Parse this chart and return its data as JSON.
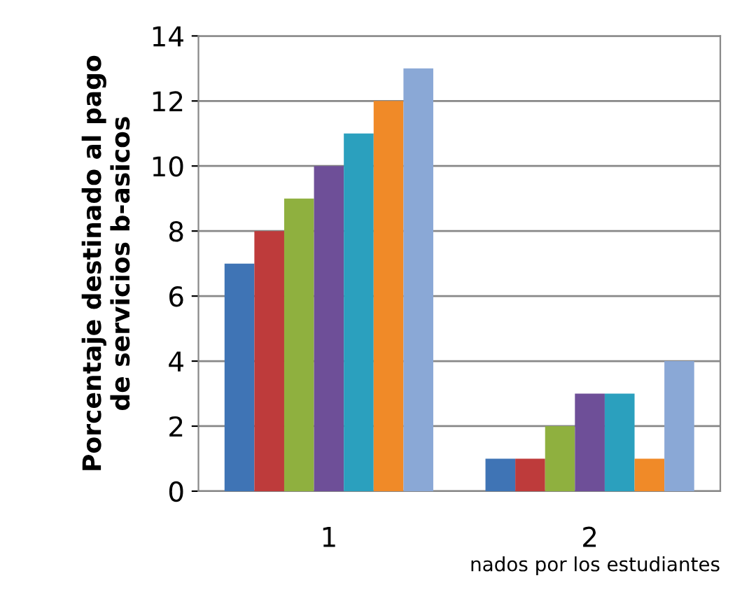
{
  "chart_data": {
    "type": "bar",
    "ylabel": "Porcentaje destinado al pago\nde servicios b-asicos",
    "xlabel": "nados por los estudiantes",
    "categories": [
      "1",
      "2"
    ],
    "series": [
      {
        "color": "#3f74b5",
        "values": [
          7,
          1
        ]
      },
      {
        "color": "#be3b3b",
        "values": [
          8,
          1
        ]
      },
      {
        "color": "#8fb03f",
        "values": [
          9,
          2
        ]
      },
      {
        "color": "#6e4f98",
        "values": [
          10,
          3
        ]
      },
      {
        "color": "#2ba0be",
        "values": [
          11,
          3
        ]
      },
      {
        "color": "#f08a28",
        "values": [
          12,
          1
        ]
      },
      {
        "color": "#8aa8d6",
        "values": [
          13,
          4
        ]
      }
    ],
    "ylim": [
      0,
      14
    ],
    "yticks": [
      0,
      2,
      4,
      6,
      8,
      10,
      12,
      14
    ],
    "grid": "y"
  }
}
